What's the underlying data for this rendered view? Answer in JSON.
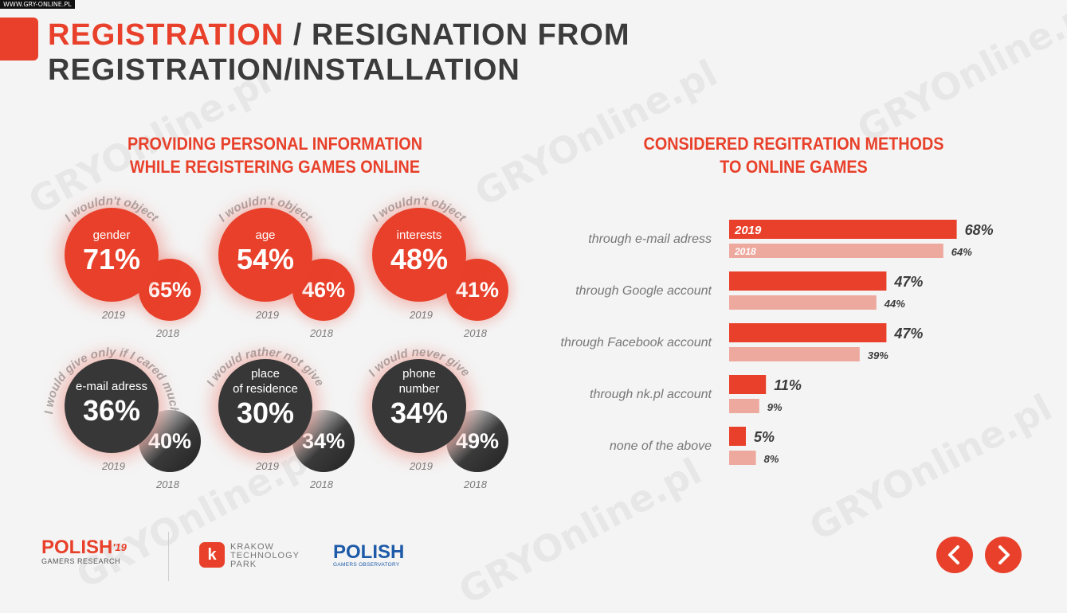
{
  "site_tag": "WWW.GRY-ONLINE.PL",
  "watermark": "GRYOnline.pl",
  "title": {
    "highlight": "REGISTRATION",
    "rest": " / RESIGNATION FROM REGISTRATION/INSTALLATION"
  },
  "left": {
    "title_line1": "PROVIDING PERSONAL INFORMATION",
    "title_line2": "WHILE REGISTERING GAMES ONLINE",
    "bubbles": [
      {
        "arc": "I wouldn't object",
        "label_lines": [
          "gender"
        ],
        "value_2019": "71%",
        "value_2018": "65%",
        "year_main": "2019",
        "year_prev": "2018"
      },
      {
        "arc": "I wouldn't object",
        "label_lines": [
          "age"
        ],
        "value_2019": "54%",
        "value_2018": "46%",
        "year_main": "2019",
        "year_prev": "2018"
      },
      {
        "arc": "I wouldn't object",
        "label_lines": [
          "interests"
        ],
        "value_2019": "48%",
        "value_2018": "41%",
        "year_main": "2019",
        "year_prev": "2018"
      },
      {
        "arc": "I would give only if I cared much",
        "label_lines": [
          "e-mail adress"
        ],
        "value_2019": "36%",
        "value_2018": "40%",
        "year_main": "2019",
        "year_prev": "2018"
      },
      {
        "arc": "I would rather not give",
        "label_lines": [
          "place",
          "of residence"
        ],
        "value_2019": "30%",
        "value_2018": "34%",
        "year_main": "2019",
        "year_prev": "2018"
      },
      {
        "arc": "I would never give",
        "label_lines": [
          "phone",
          "number"
        ],
        "value_2019": "34%",
        "value_2018": "49%",
        "year_main": "2019",
        "year_prev": "2018"
      }
    ]
  },
  "right": {
    "title_line1": "CONSIDERED REGITRATION METHODS",
    "title_line2": "TO ONLINE GAMES"
  },
  "chart_data": {
    "type": "bar",
    "orientation": "horizontal",
    "title": "CONSIDERED REGITRATION METHODS TO ONLINE GAMES",
    "categories": [
      "through e-mail adress",
      "through Google account",
      "through Facebook account",
      "through  nk.pl account",
      "none of the above"
    ],
    "series": [
      {
        "name": "2019",
        "values": [
          68,
          47,
          47,
          11,
          5
        ],
        "color": "#e8402a"
      },
      {
        "name": "2018",
        "values": [
          64,
          44,
          39,
          9,
          8
        ],
        "color": "#eea99f"
      }
    ],
    "value_suffix": "%",
    "xlim": [
      0,
      100
    ],
    "legend": "inside first bars"
  },
  "footer": {
    "logo1_main": "POLISH",
    "logo1_sup": "'19",
    "logo1_sub": "GAMERS RESEARCH",
    "logo2_icon": "k",
    "logo2_lines": [
      "KRAKOW",
      "TECHNOLOGY",
      "PARK"
    ],
    "logo3_main": "POLISH",
    "logo3_sub": "GAMERS OBSERVATORY"
  },
  "nav": {
    "prev_icon": "chevron-left-icon",
    "next_icon": "chevron-right-icon"
  },
  "colors": {
    "accent": "#e8402a",
    "accent_light": "#eea99f",
    "dark": "#373737",
    "text": "#3b3b3b"
  }
}
